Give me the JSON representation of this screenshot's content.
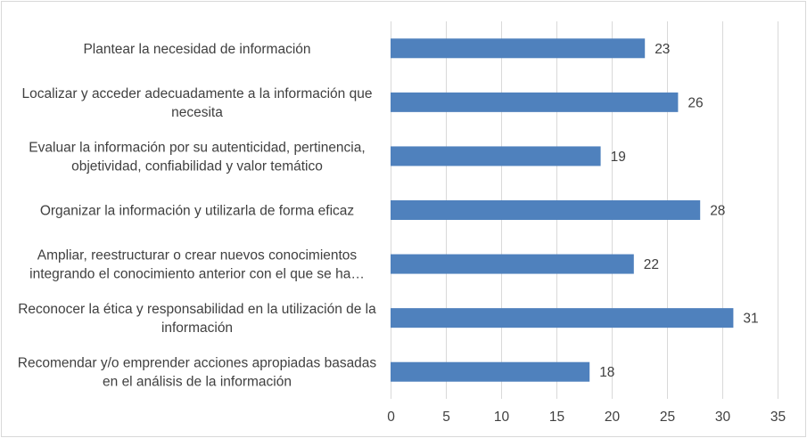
{
  "chart_data": {
    "type": "bar",
    "orientation": "horizontal",
    "categories": [
      [
        "Plantear la necesidad de información"
      ],
      [
        "Localizar y acceder adecuadamente a la información que",
        "necesita"
      ],
      [
        "Evaluar la información por su autenticidad, pertinencia,",
        "objetividad, confiabilidad y valor temático"
      ],
      [
        "Organizar la información y utilizarla de forma eficaz"
      ],
      [
        "Ampliar, reestructurar o crear nuevos conocimientos",
        "integrando el conocimiento anterior con el que se ha…"
      ],
      [
        "Reconocer la ética y responsabilidad en la utilización de la",
        "información"
      ],
      [
        "Recomendar y/o emprender acciones apropiadas basadas",
        "en el análisis de la información"
      ]
    ],
    "values": [
      23,
      26,
      19,
      28,
      22,
      31,
      18
    ],
    "xlim": [
      0,
      35
    ],
    "xticks": [
      0,
      5,
      10,
      15,
      20,
      25,
      30,
      35
    ],
    "title": "",
    "xlabel": "",
    "ylabel": "",
    "grid": "vertical",
    "legend": "none",
    "colors": {
      "bar": "#4f81bd",
      "grid": "#d9d9d9",
      "text": "#404040"
    }
  }
}
